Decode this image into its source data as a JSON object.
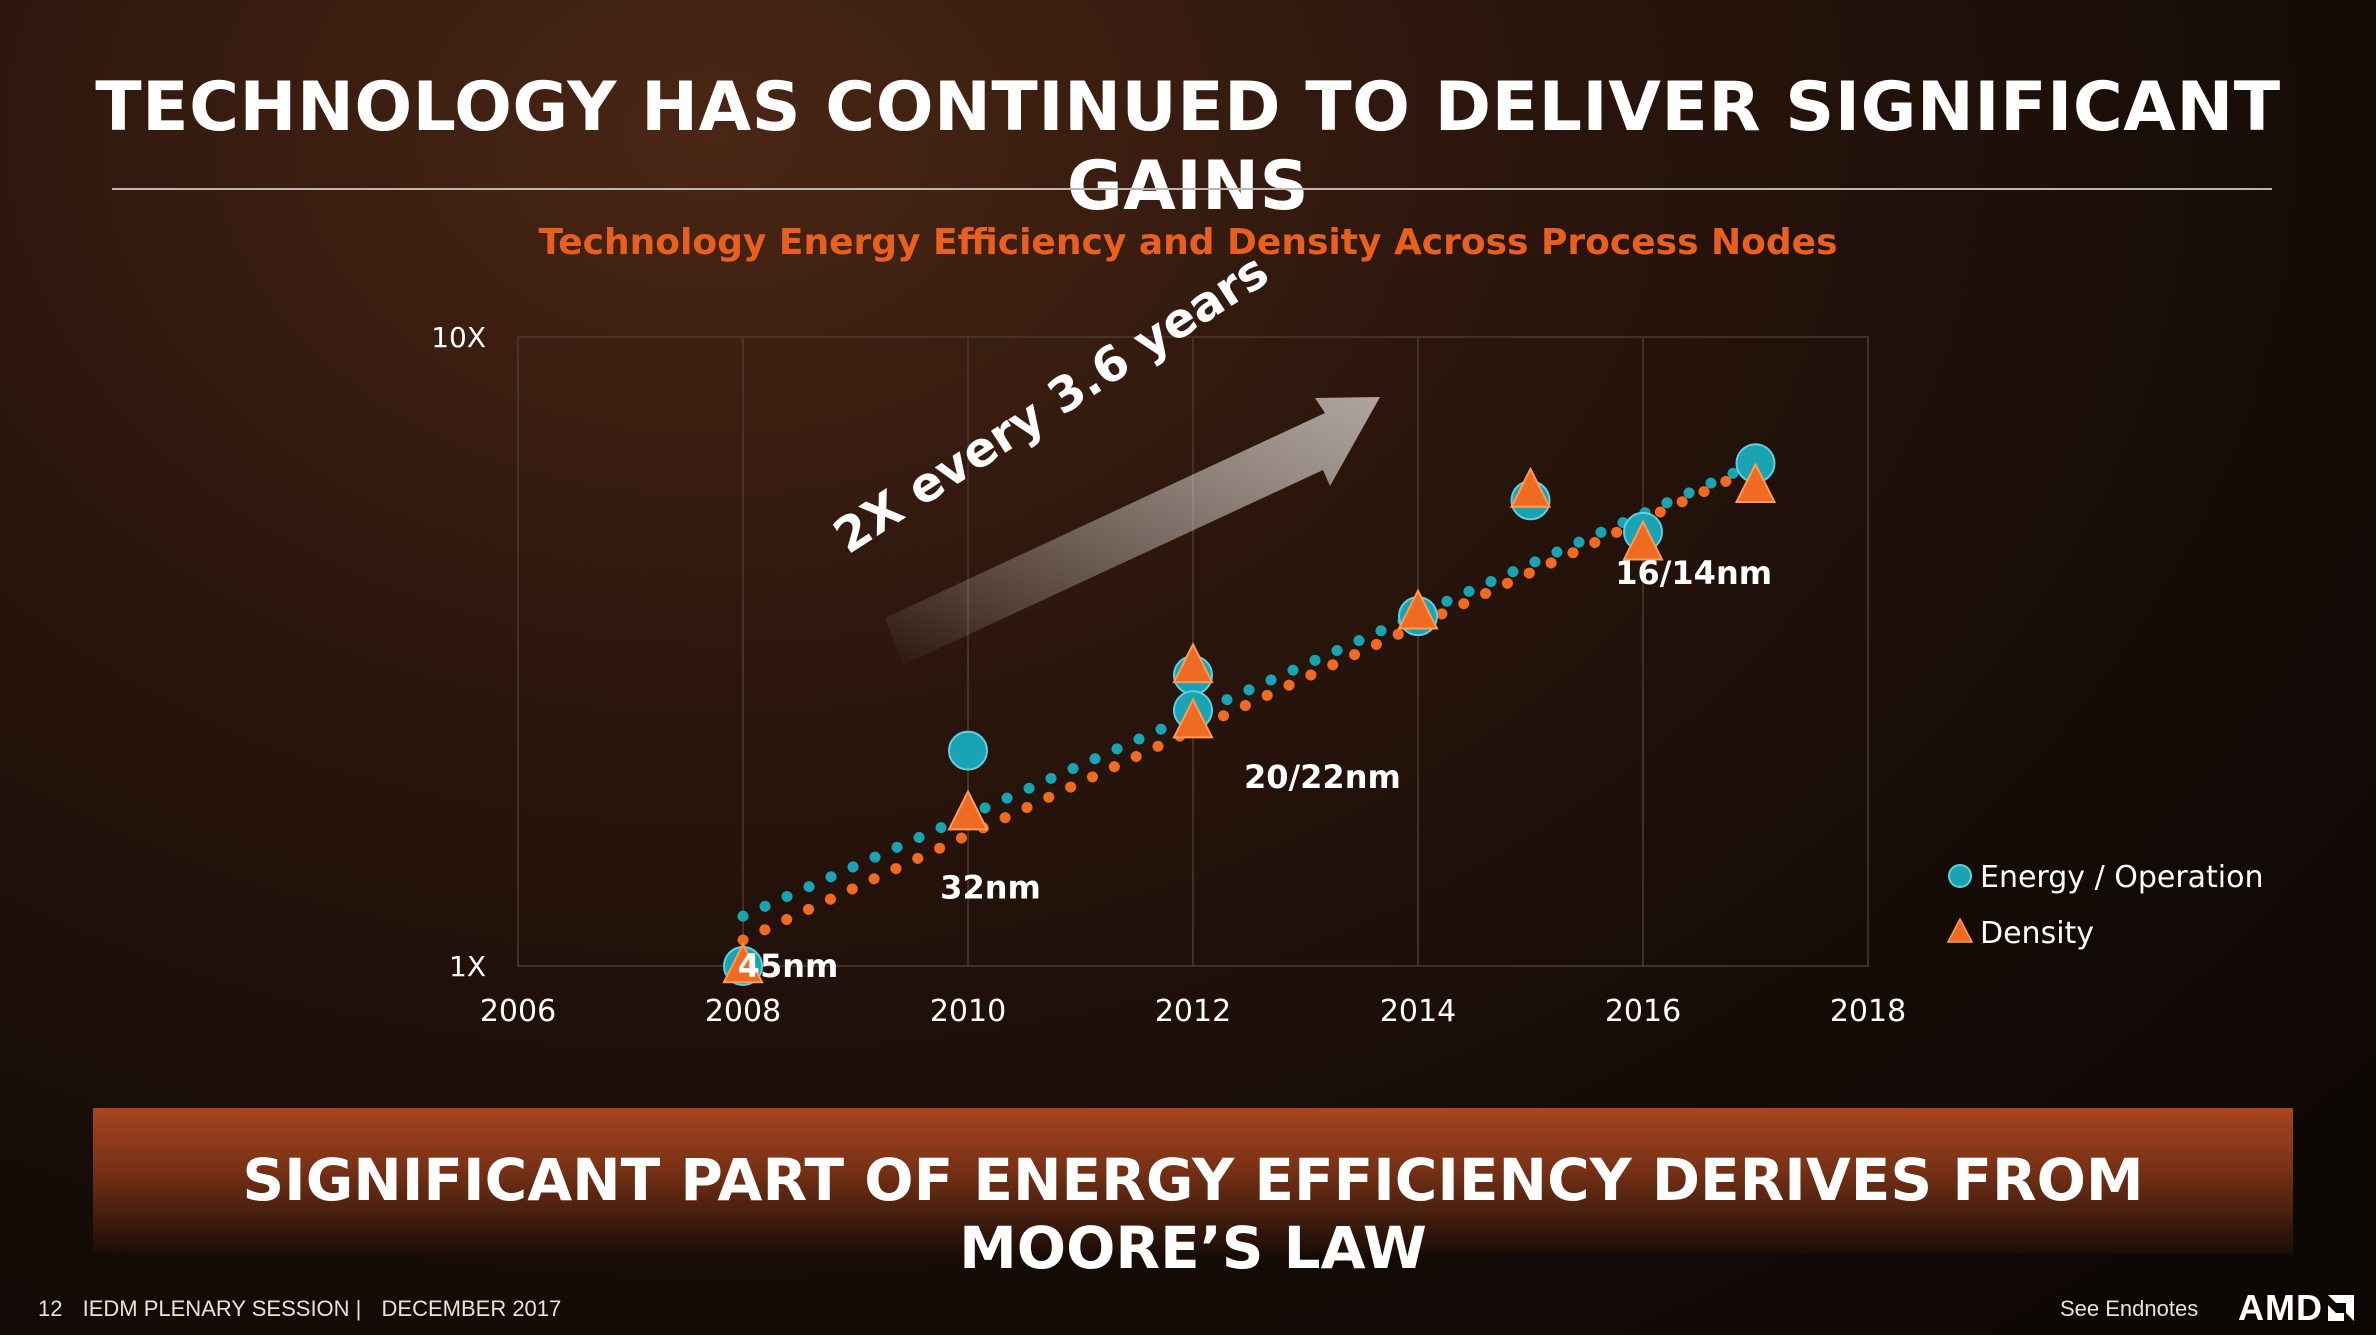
{
  "slide": {
    "title": "TECHNOLOGY HAS CONTINUED TO DELIVER SIGNIFICANT GAINS",
    "banner": "SIGNIFICANT PART OF ENERGY EFFICIENCY DERIVES FROM MOORE’S LAW"
  },
  "footer": {
    "page_number": "12",
    "session": "IEDM PLENARY SESSION |",
    "date": "DECEMBER 2017",
    "endnotes": "See Endnotes",
    "logo_text": "AMD",
    "logo_icon": "amd-arrow-logo"
  },
  "chart_data": {
    "type": "scatter",
    "title": "Technology Energy Efficiency and Density Across Process Nodes",
    "xlim": [
      2006,
      2018
    ],
    "x_ticks": [
      "2006",
      "2008",
      "2010",
      "2012",
      "2014",
      "2016",
      "2018"
    ],
    "x_tick_values": [
      2006,
      2008,
      2010,
      2012,
      2014,
      2016,
      2018
    ],
    "y_scale": "log",
    "ylim": [
      1,
      10
    ],
    "y_ticks": [
      "1X",
      "10X"
    ],
    "y_tick_values": [
      1,
      10
    ],
    "grid": "vertical",
    "legend_position": "right",
    "series": [
      {
        "name": "Energy / Operation",
        "color": "#1aa3b3",
        "marker": "circle",
        "points": [
          {
            "x": 2008,
            "y": 1.0
          },
          {
            "x": 2010,
            "y": 2.2
          },
          {
            "x": 2012,
            "y": 2.9
          },
          {
            "x": 2012,
            "y": 2.55
          },
          {
            "x": 2014,
            "y": 3.6
          },
          {
            "x": 2015,
            "y": 5.5
          },
          {
            "x": 2016,
            "y": 4.9
          },
          {
            "x": 2017,
            "y": 6.3
          }
        ],
        "trend": {
          "x": [
            2008,
            2017
          ],
          "y": [
            1.2,
            6.3
          ]
        }
      },
      {
        "name": "Density",
        "color": "#ef6a22",
        "marker": "triangle",
        "points": [
          {
            "x": 2008,
            "y": 1.0
          },
          {
            "x": 2010,
            "y": 1.75
          },
          {
            "x": 2012,
            "y": 3.0
          },
          {
            "x": 2012,
            "y": 2.45
          },
          {
            "x": 2014,
            "y": 3.65
          },
          {
            "x": 2015,
            "y": 5.7
          },
          {
            "x": 2016,
            "y": 4.7
          },
          {
            "x": 2017,
            "y": 5.8
          }
        ],
        "trend": {
          "x": [
            2008,
            2017
          ],
          "y": [
            1.1,
            6.2
          ]
        }
      }
    ],
    "node_labels": [
      {
        "text": "45nm",
        "x": 2008.4,
        "y": 0.96
      },
      {
        "text": "32nm",
        "x": 2010.2,
        "y": 1.28
      },
      {
        "text": "20/22nm",
        "x": 2013.15,
        "y": 1.92
      },
      {
        "text": "16/14nm",
        "x": 2016.45,
        "y": 4.05
      }
    ],
    "annotation": {
      "text": "2X every 3.6 years"
    }
  }
}
